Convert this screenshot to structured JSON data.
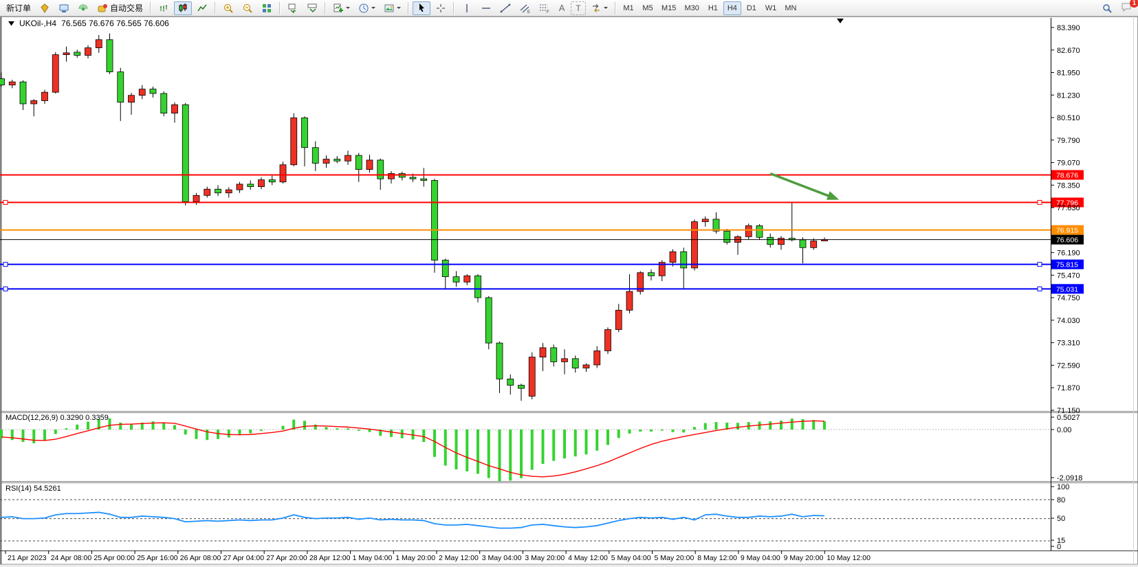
{
  "toolbar": {
    "new_order_label": "新订单",
    "auto_trading_label": "自动交易",
    "text_tool_glyph": "A",
    "label_tool_glyph": "T",
    "timeframes": [
      "M1",
      "M5",
      "M15",
      "M30",
      "H1",
      "H4",
      "D1",
      "W1",
      "MN"
    ],
    "active_timeframe": "H4",
    "notification_count": "1",
    "icon_names": [
      "new-order",
      "gold-certificate",
      "terminal",
      "signals",
      "auto-trading",
      "bar-chart",
      "candlestick-chart",
      "line-chart",
      "zoom-in",
      "zoom-out",
      "tile-windows",
      "cascade-windows",
      "arrange-windows",
      "new-chart",
      "periods",
      "templates",
      "cursor",
      "crosshair",
      "vertical-line",
      "horizontal-line",
      "trendline",
      "equidistant-channel",
      "fibonacci",
      "text",
      "text-label",
      "arrow-objects",
      "search",
      "chat"
    ]
  },
  "chart_window": {
    "title_symbol": "UKOil-,H4",
    "title_ohlc": "76.565 76.676 76.565 76.606"
  },
  "chart_data": {
    "type": "candlestick",
    "symbol": "UKOil-",
    "timeframe": "H4",
    "current_ohlc": {
      "open": "76.565",
      "high": "76.676",
      "low": "76.565",
      "close": "76.606"
    },
    "y_axis": {
      "min": 71.15,
      "max": 83.39,
      "ticks": [
        "83.390",
        "82.670",
        "81.950",
        "81.230",
        "80.510",
        "79.790",
        "79.070",
        "78.350",
        "77.630",
        "76.190",
        "75.470",
        "74.750",
        "74.030",
        "73.310",
        "72.590",
        "71.870",
        "71.150"
      ]
    },
    "x_axis_labels": [
      "21 Apr 2023",
      "24 Apr 08:00",
      "25 Apr 00:00",
      "25 Apr 16:00",
      "26 Apr 08:00",
      "27 Apr 04:00",
      "27 Apr 20:00",
      "28 Apr 12:00",
      "1 May 04:00",
      "1 May 20:00",
      "2 May 12:00",
      "3 May 04:00",
      "3 May 20:00",
      "4 May 12:00",
      "5 May 04:00",
      "5 May 20:00",
      "8 May 12:00",
      "9 May 04:00",
      "9 May 20:00",
      "10 May 12:00"
    ],
    "candles": [
      [
        81.75,
        81.95,
        81.5,
        81.55
      ],
      [
        81.55,
        81.72,
        81.45,
        81.65
      ],
      [
        81.65,
        81.7,
        80.75,
        80.95
      ],
      [
        80.95,
        81.1,
        80.55,
        81.05
      ],
      [
        81.05,
        81.4,
        80.95,
        81.32
      ],
      [
        81.32,
        82.6,
        81.28,
        82.52
      ],
      [
        82.52,
        82.78,
        82.3,
        82.58
      ],
      [
        82.6,
        82.68,
        82.42,
        82.5
      ],
      [
        82.5,
        82.82,
        82.4,
        82.74
      ],
      [
        82.74,
        83.15,
        82.58,
        83.0
      ],
      [
        83.0,
        83.2,
        81.9,
        81.97
      ],
      [
        81.97,
        82.1,
        80.4,
        81.0
      ],
      [
        81.0,
        81.3,
        80.6,
        81.22
      ],
      [
        81.22,
        81.55,
        81.1,
        81.42
      ],
      [
        81.42,
        81.5,
        81.15,
        81.28
      ],
      [
        81.28,
        81.35,
        80.55,
        80.65
      ],
      [
        80.65,
        81.0,
        80.35,
        80.92
      ],
      [
        80.92,
        80.98,
        77.7,
        77.82
      ],
      [
        77.82,
        78.1,
        77.72,
        78.02
      ],
      [
        78.02,
        78.3,
        77.95,
        78.22
      ],
      [
        78.22,
        78.35,
        78.0,
        78.1
      ],
      [
        78.1,
        78.28,
        77.95,
        78.2
      ],
      [
        78.2,
        78.45,
        78.1,
        78.38
      ],
      [
        78.38,
        78.5,
        78.2,
        78.3
      ],
      [
        78.3,
        78.6,
        78.22,
        78.52
      ],
      [
        78.52,
        78.65,
        78.35,
        78.45
      ],
      [
        78.45,
        79.1,
        78.4,
        79.0
      ],
      [
        79.0,
        80.65,
        78.95,
        80.5
      ],
      [
        80.5,
        80.55,
        78.95,
        79.55
      ],
      [
        79.55,
        79.75,
        78.8,
        79.05
      ],
      [
        79.05,
        79.3,
        78.9,
        79.18
      ],
      [
        79.18,
        79.28,
        79.05,
        79.12
      ],
      [
        79.12,
        79.45,
        79.0,
        79.3
      ],
      [
        79.3,
        79.38,
        78.45,
        78.85
      ],
      [
        78.85,
        79.32,
        78.75,
        79.15
      ],
      [
        79.15,
        79.2,
        78.2,
        78.55
      ],
      [
        78.55,
        78.8,
        78.4,
        78.72
      ],
      [
        78.72,
        78.78,
        78.5,
        78.6
      ],
      [
        78.6,
        78.72,
        78.45,
        78.55
      ],
      [
        78.55,
        78.9,
        78.3,
        78.5
      ],
      [
        78.5,
        78.55,
        75.55,
        75.95
      ],
      [
        75.95,
        76.0,
        75.05,
        75.42
      ],
      [
        75.42,
        75.6,
        75.1,
        75.25
      ],
      [
        75.25,
        75.5,
        75.15,
        75.45
      ],
      [
        75.45,
        75.5,
        74.6,
        74.75
      ],
      [
        74.75,
        74.8,
        73.1,
        73.3
      ],
      [
        73.3,
        73.35,
        71.7,
        72.15
      ],
      [
        72.15,
        72.3,
        71.65,
        71.95
      ],
      [
        71.95,
        72.0,
        71.45,
        71.85
      ],
      [
        71.6,
        73.0,
        71.5,
        72.85
      ],
      [
        72.85,
        73.3,
        72.4,
        73.15
      ],
      [
        73.15,
        73.25,
        72.55,
        72.7
      ],
      [
        72.7,
        73.1,
        72.3,
        72.8
      ],
      [
        72.8,
        72.9,
        72.35,
        72.5
      ],
      [
        72.5,
        72.65,
        72.38,
        72.6
      ],
      [
        72.6,
        73.2,
        72.5,
        73.05
      ],
      [
        73.05,
        73.8,
        72.95,
        73.73
      ],
      [
        73.73,
        74.55,
        73.65,
        74.35
      ],
      [
        74.35,
        75.5,
        74.25,
        74.95
      ],
      [
        74.95,
        75.6,
        74.85,
        75.55
      ],
      [
        75.55,
        75.65,
        75.3,
        75.45
      ],
      [
        75.45,
        75.95,
        75.28,
        75.88
      ],
      [
        75.88,
        76.3,
        75.75,
        76.22
      ],
      [
        76.22,
        76.35,
        75.05,
        75.7
      ],
      [
        75.7,
        77.25,
        75.62,
        77.18
      ],
      [
        77.18,
        77.35,
        77.02,
        77.26
      ],
      [
        77.26,
        77.48,
        76.8,
        76.88
      ],
      [
        76.88,
        76.95,
        76.45,
        76.52
      ],
      [
        76.52,
        76.75,
        76.12,
        76.7
      ],
      [
        76.7,
        77.12,
        76.62,
        77.05
      ],
      [
        77.05,
        77.1,
        76.6,
        76.68
      ],
      [
        76.68,
        76.8,
        76.35,
        76.45
      ],
      [
        76.45,
        76.72,
        76.28,
        76.65
      ],
      [
        76.65,
        77.8,
        76.55,
        76.6
      ],
      [
        76.6,
        76.68,
        75.85,
        76.35
      ],
      [
        76.35,
        76.65,
        76.28,
        76.565
      ],
      [
        76.565,
        76.676,
        76.565,
        76.606
      ]
    ],
    "horizontal_lines": [
      {
        "price": 78.676,
        "label": "78.676",
        "color": "#fe0000",
        "width": 2,
        "selected": false
      },
      {
        "price": 77.796,
        "label": "77.796",
        "color": "#fe0000",
        "width": 2,
        "selected": true
      },
      {
        "price": 76.915,
        "label": "76.915",
        "color": "#ff8d00",
        "width": 2,
        "selected": false
      },
      {
        "price": 76.606,
        "label": "76.606",
        "color": "#000000",
        "width": 1,
        "selected": false,
        "role": "last-price"
      },
      {
        "price": 75.815,
        "label": "75.815",
        "color": "#0000fe",
        "width": 2,
        "selected": true
      },
      {
        "price": 75.031,
        "label": "75.031",
        "color": "#0000fe",
        "width": 2,
        "selected": true
      }
    ],
    "arrow_annotation": {
      "from_bar": 71,
      "from_price": 78.72,
      "to_bar": 77,
      "to_price": 77.93,
      "color": "#4f9d3e"
    },
    "colors": {
      "bull": "#ee3124",
      "bear": "#36d330",
      "wick": "#000000",
      "rsi_line": "#1e90ff",
      "macd_histogram": "#36d330",
      "macd_signal": "#fe0000"
    },
    "macd": {
      "label": "MACD(12,26,9) 0.3290 0.3359",
      "main_value": "0.3290",
      "signal_value": "0.3359",
      "axis_labels": [
        "0.5027",
        "0.00",
        "-2.0918"
      ],
      "histogram": [
        -0.35,
        -0.42,
        -0.5,
        -0.55,
        -0.45,
        -0.18,
        0.05,
        0.2,
        0.32,
        0.42,
        0.45,
        0.28,
        0.22,
        0.28,
        0.33,
        0.28,
        0.18,
        -0.2,
        -0.38,
        -0.42,
        -0.38,
        -0.32,
        -0.22,
        -0.15,
        -0.05,
        0.0,
        0.15,
        0.4,
        0.35,
        0.2,
        0.1,
        0.05,
        0.05,
        -0.05,
        -0.1,
        -0.25,
        -0.3,
        -0.35,
        -0.4,
        -0.5,
        -1.1,
        -1.45,
        -1.6,
        -1.68,
        -1.78,
        -1.95,
        -2.09,
        -2.05,
        -1.95,
        -1.62,
        -1.38,
        -1.26,
        -1.16,
        -1.08,
        -1.0,
        -0.85,
        -0.62,
        -0.34,
        -0.16,
        -0.08,
        -0.08,
        -0.04,
        -0.1,
        -0.12,
        0.1,
        0.26,
        0.3,
        0.28,
        0.27,
        0.3,
        0.32,
        0.33,
        0.36,
        0.44,
        0.42,
        0.38,
        0.329
      ],
      "signal": [
        -0.3,
        -0.33,
        -0.38,
        -0.43,
        -0.44,
        -0.39,
        -0.28,
        -0.16,
        -0.05,
        0.07,
        0.17,
        0.21,
        0.22,
        0.24,
        0.26,
        0.27,
        0.25,
        0.14,
        0.02,
        -0.09,
        -0.16,
        -0.2,
        -0.21,
        -0.2,
        -0.16,
        -0.12,
        -0.06,
        0.05,
        0.13,
        0.15,
        0.14,
        0.12,
        0.1,
        0.06,
        0.02,
        -0.04,
        -0.1,
        -0.16,
        -0.22,
        -0.28,
        -0.48,
        -0.72,
        -0.94,
        -1.12,
        -1.28,
        -1.45,
        -1.58,
        -1.72,
        -1.82,
        -1.88,
        -1.9,
        -1.87,
        -1.8,
        -1.7,
        -1.58,
        -1.45,
        -1.3,
        -1.12,
        -0.94,
        -0.76,
        -0.6,
        -0.47,
        -0.37,
        -0.28,
        -0.2,
        -0.12,
        -0.04,
        0.03,
        0.09,
        0.14,
        0.18,
        0.22,
        0.26,
        0.3,
        0.33,
        0.35,
        0.3359
      ]
    },
    "rsi": {
      "label": "RSI(14) 54.5261",
      "value": "54.5261",
      "axis_labels": [
        "100",
        "80",
        "50",
        "15",
        "0"
      ],
      "dashed_levels": [
        80,
        50,
        15
      ],
      "series": [
        52,
        53,
        50,
        50,
        51,
        56,
        58,
        58,
        59,
        60,
        57,
        52,
        52,
        54,
        53,
        52,
        50,
        45,
        46,
        47,
        46,
        47,
        48,
        47,
        48,
        48,
        51,
        56,
        52,
        50,
        51,
        51,
        52,
        49,
        51,
        48,
        49,
        48,
        48,
        47,
        42,
        40,
        40,
        41,
        39,
        37,
        35,
        35,
        36,
        40,
        41,
        39,
        37,
        36,
        37,
        39,
        43,
        47,
        50,
        52,
        51,
        52,
        49,
        52,
        48,
        56,
        57,
        54,
        52,
        52,
        54,
        53,
        54,
        57,
        53,
        55,
        54.5
      ]
    }
  }
}
